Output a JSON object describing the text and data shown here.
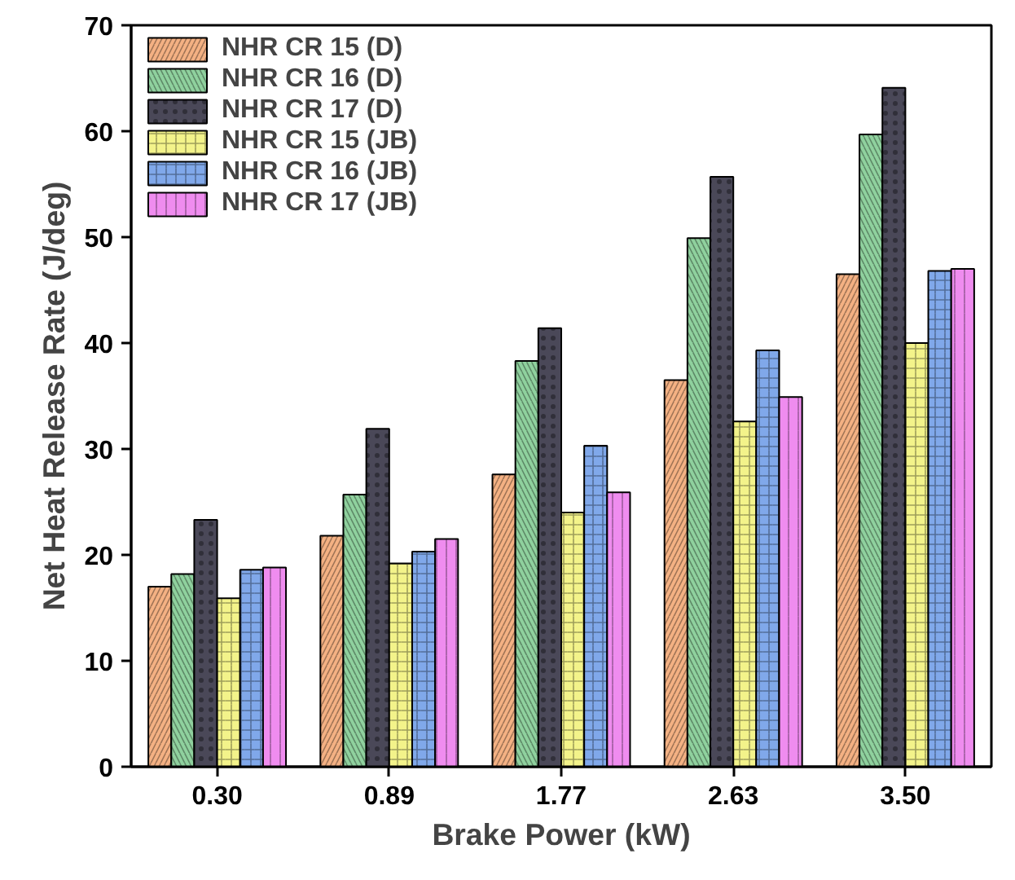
{
  "chart_data": {
    "type": "bar",
    "xlabel": "Brake Power (kW)",
    "ylabel": "Net Heat Release Rate (J/deg)",
    "categories": [
      "0.30",
      "0.89",
      "1.77",
      "2.63",
      "3.50"
    ],
    "series": [
      {
        "name": "NHR CR 15 (D)",
        "color": "#f4b183",
        "values": [
          17.0,
          21.8,
          27.6,
          36.5,
          46.5
        ]
      },
      {
        "name": "NHR CR 16 (D)",
        "color": "#8fd19e",
        "values": [
          18.2,
          25.7,
          38.3,
          49.9,
          59.7
        ]
      },
      {
        "name": "NHR CR 17 (D)",
        "color": "#4a4858",
        "values": [
          23.3,
          31.9,
          41.4,
          55.7,
          64.1
        ]
      },
      {
        "name": "NHR CR 15 (JB)",
        "color": "#f3f38a",
        "values": [
          15.9,
          19.2,
          24.0,
          32.6,
          40.0
        ]
      },
      {
        "name": "NHR CR 16 (JB)",
        "color": "#80a8ea",
        "values": [
          18.6,
          20.3,
          30.3,
          39.3,
          46.8
        ]
      },
      {
        "name": "NHR CR 17 (JB)",
        "color": "#ef8cef",
        "values": [
          18.8,
          21.5,
          25.9,
          34.9,
          47.0
        ]
      }
    ],
    "ylim": [
      0,
      70
    ],
    "yticks": [
      0,
      10,
      20,
      30,
      40,
      50,
      60,
      70
    ],
    "grid": false,
    "legend": "top left"
  }
}
